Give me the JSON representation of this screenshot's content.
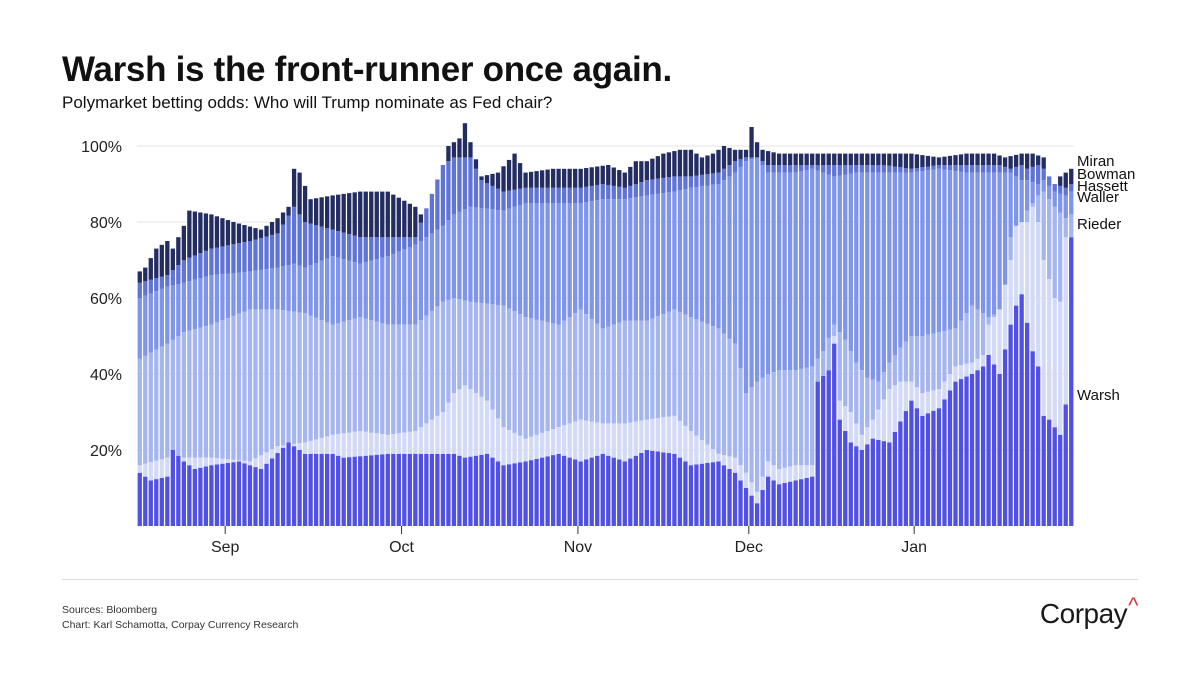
{
  "header": {
    "title": "Warsh is the front-runner once again.",
    "subtitle": "Polymarket betting odds: Who will Trump nominate as Fed chair?"
  },
  "footer": {
    "sources": "Sources: Bloomberg",
    "credit": "Chart: Karl Schamotta, Corpay Currency Research",
    "logo_text": "Corpay",
    "logo_mark": "^"
  },
  "chart_data": {
    "type": "bar",
    "stacked": true,
    "title": "Warsh is the front-runner once again.",
    "subtitle": "Polymarket betting odds: Who will Trump nominate as Fed chair?",
    "yaxis": {
      "ticks": [
        "20%",
        "40%",
        "60%",
        "80%",
        "100%"
      ],
      "tick_values": [
        20,
        40,
        60,
        80,
        100
      ],
      "ylim": [
        0,
        106
      ]
    },
    "xaxis": {
      "month_labels": [
        "Sep",
        "Oct",
        "Nov",
        "Dec",
        "Jan"
      ],
      "month_start_index": [
        16,
        48,
        80,
        111,
        141
      ]
    },
    "grid": true,
    "legend": "direct labels at right end",
    "series_order_bottom_to_top": [
      "Warsh",
      "Rieder",
      "Waller",
      "Hassett",
      "Bowman",
      "Miran"
    ],
    "series": [
      {
        "name": "Warsh",
        "color": "#5050e6"
      },
      {
        "name": "Rieder",
        "color": "#d3daf6"
      },
      {
        "name": "Waller",
        "color": "#a5b5ef"
      },
      {
        "name": "Hassett",
        "color": "#7f95ea"
      },
      {
        "name": "Bowman",
        "color": "#5f74d4"
      },
      {
        "name": "Miran",
        "color": "#232d62"
      }
    ],
    "end_labels": [
      "Miran",
      "Bowman",
      "Hassett",
      "Waller",
      "Rieder",
      "Warsh"
    ],
    "anchors": {
      "warsh": [
        [
          0,
          14
        ],
        [
          2,
          12
        ],
        [
          5,
          13
        ],
        [
          6,
          20
        ],
        [
          8,
          17
        ],
        [
          10,
          15
        ],
        [
          13,
          16
        ],
        [
          18,
          17
        ],
        [
          22,
          15
        ],
        [
          27,
          22
        ],
        [
          30,
          19
        ],
        [
          35,
          19
        ],
        [
          37,
          18
        ],
        [
          45,
          19
        ],
        [
          57,
          19
        ],
        [
          59,
          18
        ],
        [
          63,
          19
        ],
        [
          66,
          16
        ],
        [
          70,
          17
        ],
        [
          76,
          19
        ],
        [
          80,
          17
        ],
        [
          84,
          19
        ],
        [
          88,
          17
        ],
        [
          92,
          20
        ],
        [
          97,
          19
        ],
        [
          100,
          16
        ],
        [
          105,
          17
        ],
        [
          108,
          14
        ],
        [
          110,
          10
        ],
        [
          112,
          6
        ],
        [
          114,
          13
        ],
        [
          116,
          11
        ],
        [
          119,
          12
        ],
        [
          122,
          13
        ],
        [
          123,
          38
        ],
        [
          125,
          41
        ],
        [
          126,
          48
        ],
        [
          127,
          28
        ],
        [
          129,
          22
        ],
        [
          131,
          20
        ],
        [
          133,
          23
        ],
        [
          136,
          22
        ],
        [
          140,
          33
        ],
        [
          142,
          29
        ],
        [
          145,
          31
        ],
        [
          148,
          38
        ],
        [
          151,
          40
        ],
        [
          153,
          42
        ],
        [
          154,
          45
        ],
        [
          156,
          40
        ],
        [
          158,
          53
        ],
        [
          159,
          58
        ],
        [
          160,
          61
        ],
        [
          162,
          46
        ],
        [
          163,
          42
        ],
        [
          164,
          29
        ],
        [
          165,
          28
        ],
        [
          167,
          24
        ],
        [
          168,
          32
        ],
        [
          169,
          76
        ]
      ],
      "warsh_rieder": [
        [
          0,
          16
        ],
        [
          5,
          18
        ],
        [
          8,
          18
        ],
        [
          13,
          18
        ],
        [
          20,
          17
        ],
        [
          25,
          21
        ],
        [
          30,
          22
        ],
        [
          35,
          24
        ],
        [
          40,
          25
        ],
        [
          45,
          24
        ],
        [
          50,
          25
        ],
        [
          55,
          30
        ],
        [
          57,
          35
        ],
        [
          59,
          37
        ],
        [
          63,
          33
        ],
        [
          66,
          26
        ],
        [
          70,
          23
        ],
        [
          76,
          26
        ],
        [
          80,
          28
        ],
        [
          84,
          27
        ],
        [
          88,
          27
        ],
        [
          92,
          28
        ],
        [
          97,
          29
        ],
        [
          100,
          25
        ],
        [
          105,
          19
        ],
        [
          108,
          18
        ],
        [
          110,
          14
        ],
        [
          112,
          9
        ],
        [
          114,
          17
        ],
        [
          116,
          15
        ],
        [
          119,
          16
        ],
        [
          122,
          16
        ],
        [
          123,
          38
        ],
        [
          125,
          41
        ],
        [
          126,
          50
        ],
        [
          127,
          33
        ],
        [
          129,
          30
        ],
        [
          131,
          24
        ],
        [
          133,
          28
        ],
        [
          136,
          36
        ],
        [
          138,
          38
        ],
        [
          140,
          38
        ],
        [
          142,
          35
        ],
        [
          145,
          36
        ],
        [
          148,
          42
        ],
        [
          151,
          43
        ],
        [
          153,
          45
        ],
        [
          154,
          53
        ],
        [
          156,
          57
        ],
        [
          158,
          70
        ],
        [
          159,
          79
        ],
        [
          160,
          80
        ],
        [
          161,
          80
        ],
        [
          162,
          84
        ],
        [
          163,
          80
        ],
        [
          164,
          70
        ],
        [
          166,
          60
        ],
        [
          167,
          59
        ],
        [
          168,
          76
        ],
        [
          169,
          76
        ]
      ],
      "cum_waller": [
        [
          0,
          44
        ],
        [
          5,
          48
        ],
        [
          8,
          51
        ],
        [
          13,
          53
        ],
        [
          20,
          57
        ],
        [
          25,
          57
        ],
        [
          30,
          56
        ],
        [
          35,
          53
        ],
        [
          40,
          55
        ],
        [
          45,
          53
        ],
        [
          50,
          53
        ],
        [
          55,
          59
        ],
        [
          57,
          60
        ],
        [
          60,
          59
        ],
        [
          66,
          58
        ],
        [
          70,
          55
        ],
        [
          76,
          53
        ],
        [
          80,
          57
        ],
        [
          84,
          52
        ],
        [
          88,
          54
        ],
        [
          92,
          54
        ],
        [
          97,
          57
        ],
        [
          100,
          55
        ],
        [
          105,
          52
        ],
        [
          108,
          48
        ],
        [
          110,
          35
        ],
        [
          112,
          38
        ],
        [
          114,
          40
        ],
        [
          116,
          41
        ],
        [
          119,
          41
        ],
        [
          122,
          42
        ],
        [
          124,
          46
        ],
        [
          126,
          53
        ],
        [
          128,
          49
        ],
        [
          130,
          43
        ],
        [
          132,
          39
        ],
        [
          134,
          38
        ],
        [
          136,
          43
        ],
        [
          138,
          47
        ],
        [
          140,
          50
        ],
        [
          142,
          50
        ],
        [
          145,
          51
        ],
        [
          148,
          52
        ],
        [
          151,
          58
        ],
        [
          154,
          55
        ],
        [
          157,
          57
        ],
        [
          158,
          76
        ],
        [
          160,
          80
        ],
        [
          161,
          83
        ],
        [
          163,
          87
        ],
        [
          164,
          88
        ],
        [
          166,
          84
        ],
        [
          168,
          81
        ],
        [
          169,
          82
        ]
      ],
      "cum_hassett": [
        [
          0,
          60
        ],
        [
          5,
          63
        ],
        [
          8,
          64
        ],
        [
          13,
          66
        ],
        [
          20,
          67
        ],
        [
          25,
          68
        ],
        [
          28,
          69
        ],
        [
          30,
          68
        ],
        [
          35,
          71
        ],
        [
          40,
          69
        ],
        [
          45,
          71
        ],
        [
          50,
          74
        ],
        [
          55,
          79
        ],
        [
          57,
          82
        ],
        [
          60,
          84
        ],
        [
          66,
          83
        ],
        [
          70,
          85
        ],
        [
          76,
          85
        ],
        [
          80,
          85
        ],
        [
          84,
          86
        ],
        [
          88,
          86
        ],
        [
          92,
          87
        ],
        [
          97,
          88
        ],
        [
          100,
          89
        ],
        [
          105,
          90
        ],
        [
          108,
          93
        ],
        [
          110,
          96
        ],
        [
          112,
          97
        ],
        [
          114,
          93
        ],
        [
          116,
          93
        ],
        [
          119,
          93
        ],
        [
          122,
          94
        ],
        [
          126,
          92
        ],
        [
          130,
          93
        ],
        [
          135,
          93
        ],
        [
          140,
          93
        ],
        [
          145,
          94
        ],
        [
          150,
          93
        ],
        [
          154,
          93
        ],
        [
          156,
          93
        ],
        [
          158,
          93
        ],
        [
          160,
          91
        ],
        [
          161,
          91
        ],
        [
          163,
          90
        ],
        [
          164,
          91
        ],
        [
          166,
          88
        ],
        [
          168,
          87
        ],
        [
          169,
          88
        ]
      ],
      "cum_bowman": [
        [
          0,
          64
        ],
        [
          5,
          66
        ],
        [
          8,
          70
        ],
        [
          13,
          73
        ],
        [
          20,
          75
        ],
        [
          25,
          77
        ],
        [
          28,
          84
        ],
        [
          30,
          80
        ],
        [
          35,
          78
        ],
        [
          40,
          76
        ],
        [
          45,
          76
        ],
        [
          50,
          76
        ],
        [
          55,
          95
        ],
        [
          57,
          97
        ],
        [
          60,
          97
        ],
        [
          62,
          91
        ],
        [
          66,
          88
        ],
        [
          70,
          89
        ],
        [
          76,
          89
        ],
        [
          80,
          89
        ],
        [
          84,
          90
        ],
        [
          88,
          89
        ],
        [
          92,
          91
        ],
        [
          97,
          92
        ],
        [
          100,
          92
        ],
        [
          105,
          93
        ],
        [
          108,
          96
        ],
        [
          110,
          97
        ],
        [
          112,
          97
        ],
        [
          114,
          95
        ],
        [
          116,
          95
        ],
        [
          119,
          95
        ],
        [
          122,
          95
        ],
        [
          126,
          95
        ],
        [
          130,
          95
        ],
        [
          135,
          95
        ],
        [
          140,
          94
        ],
        [
          145,
          95
        ],
        [
          150,
          95
        ],
        [
          154,
          95
        ],
        [
          156,
          95
        ],
        [
          158,
          94
        ],
        [
          160,
          95
        ],
        [
          161,
          94
        ],
        [
          163,
          95
        ],
        [
          164,
          94
        ],
        [
          166,
          90
        ],
        [
          168,
          89
        ],
        [
          169,
          90
        ]
      ],
      "total": [
        [
          0,
          67
        ],
        [
          1,
          68
        ],
        [
          3,
          73
        ],
        [
          5,
          75
        ],
        [
          6,
          73
        ],
        [
          8,
          79
        ],
        [
          9,
          83
        ],
        [
          13,
          82
        ],
        [
          17,
          80
        ],
        [
          22,
          78
        ],
        [
          25,
          81
        ],
        [
          27,
          84
        ],
        [
          28,
          94
        ],
        [
          29,
          93
        ],
        [
          31,
          86
        ],
        [
          35,
          87
        ],
        [
          40,
          88
        ],
        [
          45,
          88
        ],
        [
          50,
          84
        ],
        [
          52,
          80
        ],
        [
          55,
          84
        ],
        [
          56,
          100
        ],
        [
          58,
          102
        ],
        [
          59,
          106
        ],
        [
          60,
          101
        ],
        [
          62,
          92
        ],
        [
          65,
          93
        ],
        [
          68,
          98
        ],
        [
          70,
          93
        ],
        [
          75,
          94
        ],
        [
          80,
          94
        ],
        [
          85,
          95
        ],
        [
          88,
          93
        ],
        [
          90,
          96
        ],
        [
          92,
          96
        ],
        [
          95,
          98
        ],
        [
          98,
          99
        ],
        [
          100,
          99
        ],
        [
          102,
          97
        ],
        [
          104,
          98
        ],
        [
          106,
          100
        ],
        [
          108,
          99
        ],
        [
          110,
          99
        ],
        [
          111,
          105
        ],
        [
          112,
          101
        ],
        [
          113,
          99
        ],
        [
          116,
          98
        ],
        [
          120,
          98
        ],
        [
          125,
          98
        ],
        [
          130,
          98
        ],
        [
          135,
          98
        ],
        [
          140,
          98
        ],
        [
          145,
          97
        ],
        [
          150,
          98
        ],
        [
          155,
          98
        ],
        [
          157,
          97
        ],
        [
          160,
          98
        ],
        [
          162,
          98
        ],
        [
          164,
          97
        ],
        [
          165,
          92
        ],
        [
          166,
          90
        ],
        [
          167,
          92
        ],
        [
          168,
          93
        ],
        [
          169,
          94
        ]
      ]
    }
  }
}
